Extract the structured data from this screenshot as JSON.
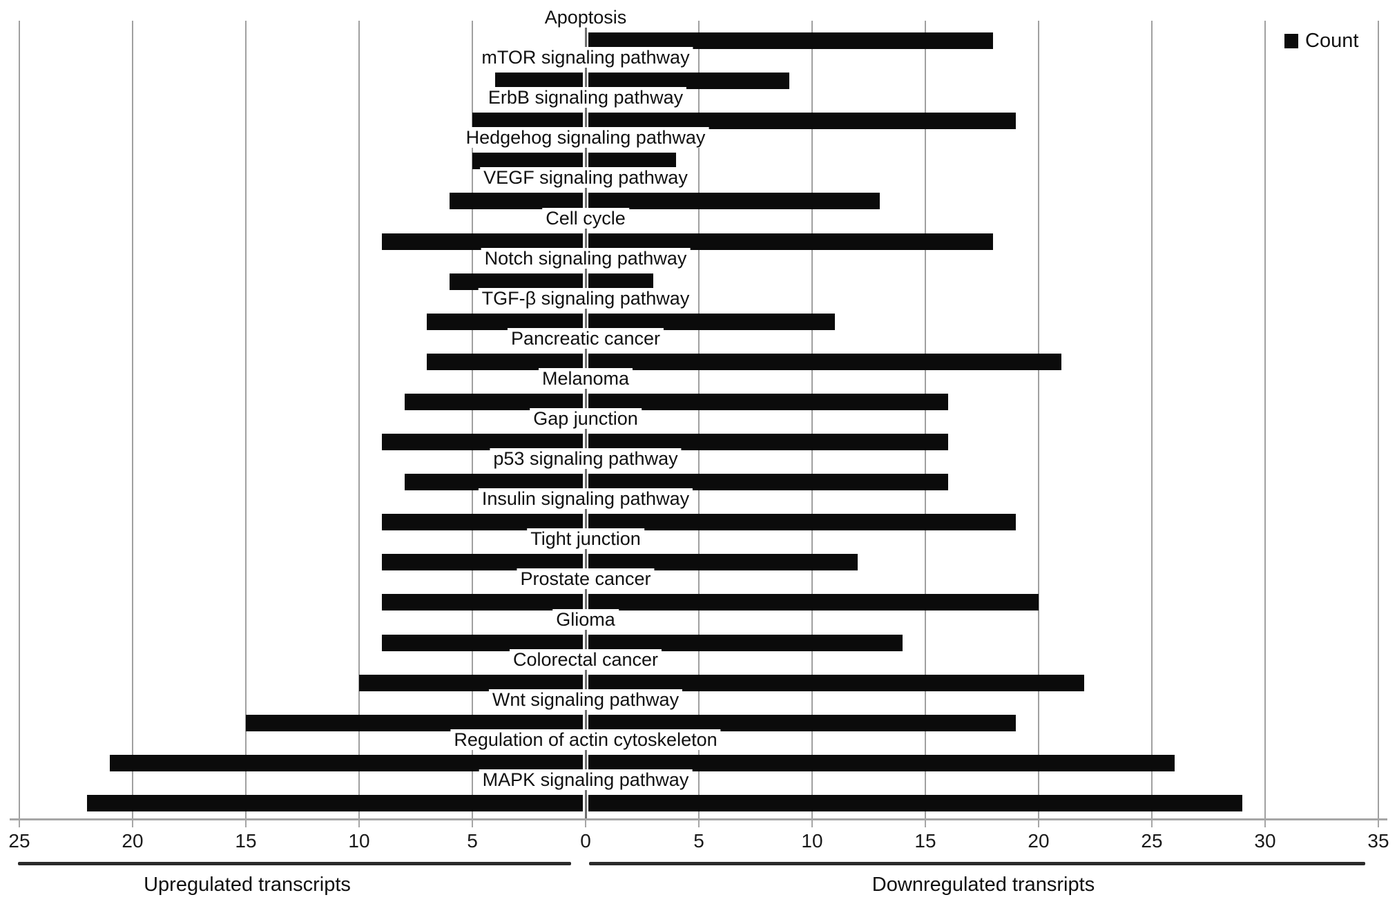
{
  "chart_data": {
    "type": "bar",
    "orientation": "horizontal-bidirectional",
    "legend": {
      "label": "Count",
      "position": "top-right",
      "swatch_color": "#0b0b0b"
    },
    "bar_color": "#0b0b0b",
    "gridline_color": "#a0a0a0",
    "zero_axis_color": "#6e6e6e",
    "grid": true,
    "categories": [
      "Apoptosis",
      "mTOR signaling pathway",
      "ErbB signaling pathway",
      "Hedgehog signaling pathway",
      "VEGF signaling pathway",
      "Cell cycle",
      "Notch signaling pathway",
      "TGF-β signaling pathway",
      "Pancreatic cancer",
      "Melanoma",
      "Gap junction",
      "p53 signaling pathway",
      "Insulin signaling pathway",
      "Tight junction",
      "Prostate cancer",
      "Glioma",
      "Colorectal cancer",
      "Wnt signaling pathway",
      "Regulation of actin cytoskeleton",
      "MAPK signaling pathway"
    ],
    "series": [
      {
        "name": "Upregulated transcripts",
        "direction": "left",
        "values": [
          0,
          4,
          5,
          5,
          6,
          9,
          6,
          7,
          7,
          8,
          9,
          8,
          9,
          9,
          9,
          9,
          10,
          15,
          21,
          22
        ]
      },
      {
        "name": "Downregulated transripts",
        "direction": "right",
        "values": [
          18,
          9,
          19,
          4,
          13,
          18,
          3,
          11,
          21,
          16,
          16,
          16,
          19,
          12,
          20,
          14,
          22,
          19,
          26,
          29
        ]
      }
    ],
    "x_axis": {
      "left_range": [
        0,
        25
      ],
      "right_range": [
        0,
        35
      ],
      "tick_step": 5,
      "ticks": [
        {
          "value": -25,
          "label": "25"
        },
        {
          "value": -20,
          "label": "20"
        },
        {
          "value": -15,
          "label": "15"
        },
        {
          "value": -10,
          "label": "10"
        },
        {
          "value": -5,
          "label": "5"
        },
        {
          "value": 0,
          "label": "0"
        },
        {
          "value": 5,
          "label": "5"
        },
        {
          "value": 10,
          "label": "10"
        },
        {
          "value": 15,
          "label": "15"
        },
        {
          "value": 20,
          "label": "20"
        },
        {
          "value": 25,
          "label": "25"
        },
        {
          "value": 30,
          "label": "30"
        },
        {
          "value": 35,
          "label": "35"
        }
      ]
    },
    "group_labels": {
      "left": "Upregulated transcripts",
      "right": "Downregulated transripts"
    }
  }
}
